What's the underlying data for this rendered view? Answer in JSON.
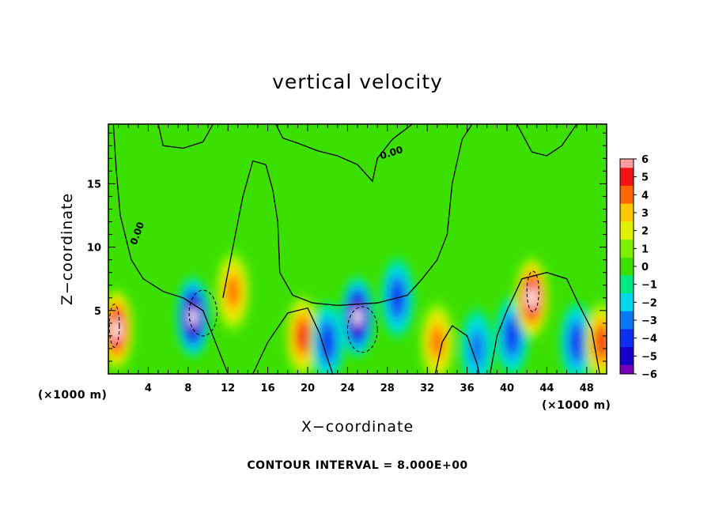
{
  "chart_data": {
    "type": "heatmap",
    "title": "vertical velocity",
    "xlabel": "X−coordinate",
    "ylabel": "Z−coordinate",
    "x_unit": "(×1000 m)",
    "y_unit": "(×1000 m)",
    "xlim": [
      0,
      50
    ],
    "ylim": [
      0,
      19.7
    ],
    "x_ticks": [
      4,
      8,
      12,
      16,
      20,
      24,
      28,
      32,
      36,
      40,
      44,
      48
    ],
    "y_ticks": [
      5,
      10,
      15
    ],
    "colorbar": {
      "range": [
        -6,
        6
      ],
      "ticks": [
        "6",
        "5",
        "4",
        "3",
        "2",
        "1",
        "0",
        "−1",
        "−2",
        "−3",
        "−4",
        "−5",
        "−6"
      ]
    },
    "contour_label": "0.00",
    "contour_interval_text": "CONTOUR INTERVAL = 8.000E+00",
    "features": [
      {
        "x": 0.8,
        "z": 3.5,
        "w": 8,
        "type": "updraft"
      },
      {
        "x": 3.0,
        "z": 13.0,
        "w": -0.6,
        "type": "downdraft"
      },
      {
        "x": 8.5,
        "z": 4.5,
        "w": -8,
        "type": "downdraft"
      },
      {
        "x": 12.5,
        "z": 6.5,
        "w": 4,
        "type": "updraft"
      },
      {
        "x": 19.5,
        "z": 3.0,
        "w": 5,
        "type": "updraft"
      },
      {
        "x": 22.0,
        "z": 2.5,
        "w": -4,
        "type": "downdraft"
      },
      {
        "x": 25.0,
        "z": 4.5,
        "w": -8,
        "type": "downdraft"
      },
      {
        "x": 29.0,
        "z": 6.0,
        "w": -4,
        "type": "downdraft"
      },
      {
        "x": 33.0,
        "z": 2.5,
        "w": 4,
        "type": "updraft"
      },
      {
        "x": 37.0,
        "z": 2.0,
        "w": -3,
        "type": "downdraft"
      },
      {
        "x": 40.5,
        "z": 3.0,
        "w": -4,
        "type": "downdraft"
      },
      {
        "x": 42.5,
        "z": 6.0,
        "w": 8,
        "type": "updraft"
      },
      {
        "x": 47.0,
        "z": 2.5,
        "w": -4,
        "type": "downdraft"
      },
      {
        "x": 49.5,
        "z": 2.5,
        "w": 5,
        "type": "updraft"
      }
    ]
  }
}
